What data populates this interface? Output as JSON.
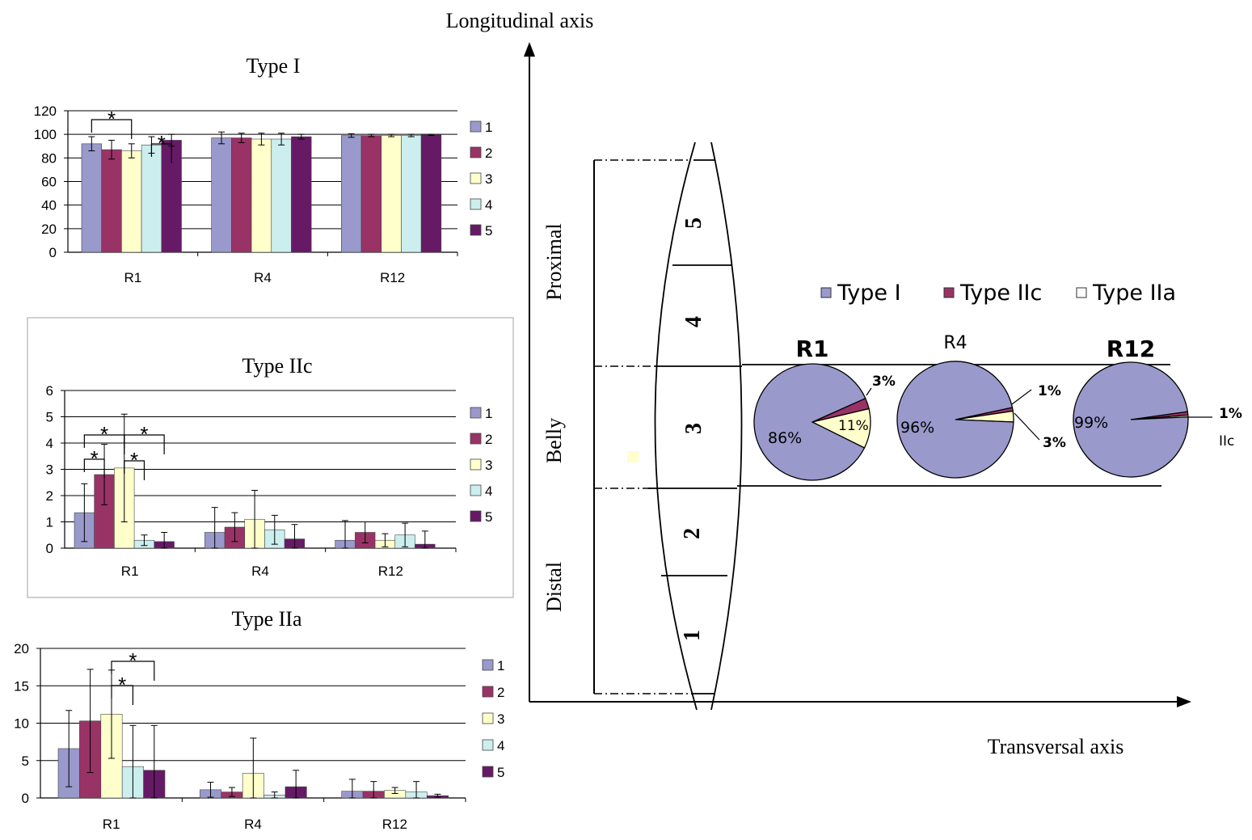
{
  "colors": {
    "s1": "#9999cc",
    "s2": "#993366",
    "s3": "#ffffcc",
    "s4": "#cceeee",
    "s5": "#661a66",
    "gridline": "#000000"
  },
  "chart_data": [
    {
      "type": "bar",
      "title": "Type I",
      "categories": [
        "R1",
        "R4",
        "R12"
      ],
      "ylim": [
        0,
        120
      ],
      "yticks": [
        0,
        20,
        40,
        60,
        80,
        100,
        120
      ],
      "legend": "right",
      "series": [
        {
          "name": "1",
          "values": [
            92,
            97,
            99
          ],
          "errors": [
            6,
            5,
            1.5
          ]
        },
        {
          "name": "2",
          "values": [
            87,
            97,
            99
          ],
          "errors": [
            8,
            4,
            1
          ]
        },
        {
          "name": "3",
          "values": [
            86,
            96,
            99
          ],
          "errors": [
            6,
            5,
            1
          ]
        },
        {
          "name": "4",
          "values": [
            91,
            96,
            99
          ],
          "errors": [
            7,
            5,
            1
          ]
        },
        {
          "name": "5",
          "values": [
            95,
            98,
            99.5
          ],
          "errors": [
            5,
            2,
            0.5
          ]
        }
      ],
      "significance": [
        {
          "from": 1,
          "to": 3,
          "label": "*"
        },
        {
          "from": 4,
          "to": 5,
          "label": "*"
        }
      ]
    },
    {
      "type": "bar",
      "title": "Type IIc",
      "categories": [
        "R1",
        "R4",
        "R12"
      ],
      "ylim": [
        0,
        6
      ],
      "yticks": [
        0,
        1,
        2,
        3,
        4,
        5,
        6
      ],
      "legend": "right",
      "series": [
        {
          "name": "1",
          "values": [
            1.35,
            0.6,
            0.3
          ],
          "errors": [
            1.1,
            0.95,
            0.75
          ]
        },
        {
          "name": "2",
          "values": [
            2.8,
            0.8,
            0.6
          ],
          "errors": [
            1.15,
            0.55,
            0.4
          ]
        },
        {
          "name": "3",
          "values": [
            3.05,
            1.1,
            0.3
          ],
          "errors": [
            2.05,
            1.1,
            0.25
          ]
        },
        {
          "name": "4",
          "values": [
            0.3,
            0.7,
            0.5
          ],
          "errors": [
            0.2,
            0.55,
            0.45
          ]
        },
        {
          "name": "5",
          "values": [
            0.25,
            0.35,
            0.15
          ],
          "errors": [
            0.35,
            0.55,
            0.5
          ]
        }
      ],
      "significance": [
        {
          "from": 1,
          "to": 3,
          "label": "*"
        },
        {
          "from": 1,
          "to": 2,
          "label": "*"
        },
        {
          "from": 3,
          "to": 5,
          "label": "*"
        },
        {
          "from": 3,
          "to": 4,
          "label": "*"
        }
      ]
    },
    {
      "type": "bar",
      "title": "Type IIa",
      "categories": [
        "R1",
        "R4",
        "R12"
      ],
      "ylim": [
        0,
        20
      ],
      "yticks": [
        0,
        5,
        10,
        15,
        20
      ],
      "legend": "right",
      "series": [
        {
          "name": "1",
          "values": [
            6.6,
            1.1,
            0.9
          ],
          "errors": [
            5.1,
            1.0,
            1.6
          ]
        },
        {
          "name": "2",
          "values": [
            10.3,
            0.8,
            0.9
          ],
          "errors": [
            6.9,
            0.6,
            1.3
          ]
        },
        {
          "name": "3",
          "values": [
            11.2,
            3.3,
            1.0
          ],
          "errors": [
            5.9,
            4.7,
            0.4
          ]
        },
        {
          "name": "4",
          "values": [
            4.2,
            0.4,
            0.8
          ],
          "errors": [
            5.5,
            0.4,
            1.4
          ]
        },
        {
          "name": "5",
          "values": [
            3.7,
            1.5,
            0.3
          ],
          "errors": [
            6.0,
            2.2,
            0.2
          ]
        }
      ],
      "significance": [
        {
          "from": 3,
          "to": 5,
          "label": "*"
        },
        {
          "from": 3,
          "to": 4,
          "label": "*"
        }
      ]
    },
    {
      "type": "pie",
      "legend": "top",
      "legend_entries": [
        "Type I",
        "Type IIc",
        "Type IIa"
      ],
      "pies": [
        {
          "label": "R1",
          "slices": [
            86,
            3,
            11
          ],
          "labels": [
            "86%",
            "3%",
            "11%"
          ]
        },
        {
          "label": "R4",
          "slices": [
            96,
            1,
            3
          ],
          "labels": [
            "96%",
            "1%",
            "3%"
          ]
        },
        {
          "label": "R12",
          "slices": [
            99,
            1,
            0.5
          ],
          "labels": [
            "99%",
            "1%",
            "IIc"
          ]
        }
      ]
    }
  ],
  "diagram": {
    "ylabel": "Longitudinal axis",
    "xlabel": "Transversal axis",
    "regions": {
      "proximal": "Proximal",
      "belly": "Belly",
      "distal": "Distal"
    },
    "segments": [
      "1",
      "2",
      "3",
      "4",
      "5"
    ]
  }
}
